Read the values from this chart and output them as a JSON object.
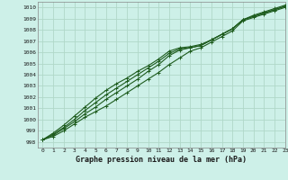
{
  "title": "Graphe pression niveau de la mer (hPa)",
  "bg_color": "#cdf0e8",
  "grid_color": "#b0d8c8",
  "line_color": "#1e5c1e",
  "xlim": [
    -0.5,
    23
  ],
  "ylim": [
    997.5,
    1010.5
  ],
  "yticks": [
    998,
    999,
    1000,
    1001,
    1002,
    1003,
    1004,
    1005,
    1006,
    1007,
    1008,
    1009,
    1010
  ],
  "xticks": [
    0,
    1,
    2,
    3,
    4,
    5,
    6,
    7,
    8,
    9,
    10,
    11,
    12,
    13,
    14,
    15,
    16,
    17,
    18,
    19,
    20,
    21,
    22,
    23
  ],
  "series": [
    [
      998.2,
      998.5,
      999.0,
      999.6,
      1000.2,
      1000.7,
      1001.2,
      1001.8,
      1002.4,
      1003.0,
      1003.6,
      1004.2,
      1004.9,
      1005.5,
      1006.1,
      1006.4,
      1006.9,
      1007.4,
      1007.9,
      1008.8,
      1009.1,
      1009.4,
      1009.7,
      1010.0
    ],
    [
      998.2,
      998.6,
      999.2,
      999.8,
      1000.5,
      1001.1,
      1001.8,
      1002.4,
      1003.0,
      1003.6,
      1004.3,
      1004.9,
      1005.7,
      1006.2,
      1006.4,
      1006.6,
      1007.1,
      1007.6,
      1008.1,
      1008.9,
      1009.2,
      1009.5,
      1009.8,
      1010.1
    ],
    [
      998.2,
      998.7,
      999.3,
      1000.0,
      1000.8,
      1001.5,
      1002.2,
      1002.8,
      1003.4,
      1004.0,
      1004.6,
      1005.2,
      1005.9,
      1006.3,
      1006.4,
      1006.6,
      1007.1,
      1007.6,
      1008.1,
      1008.9,
      1009.2,
      1009.5,
      1009.8,
      1010.1
    ],
    [
      998.2,
      998.8,
      999.5,
      1000.3,
      1001.1,
      1001.9,
      1002.6,
      1003.2,
      1003.7,
      1004.3,
      1004.8,
      1005.4,
      1006.1,
      1006.4,
      1006.5,
      1006.7,
      1007.1,
      1007.6,
      1008.1,
      1008.9,
      1009.3,
      1009.6,
      1009.9,
      1010.2
    ]
  ]
}
